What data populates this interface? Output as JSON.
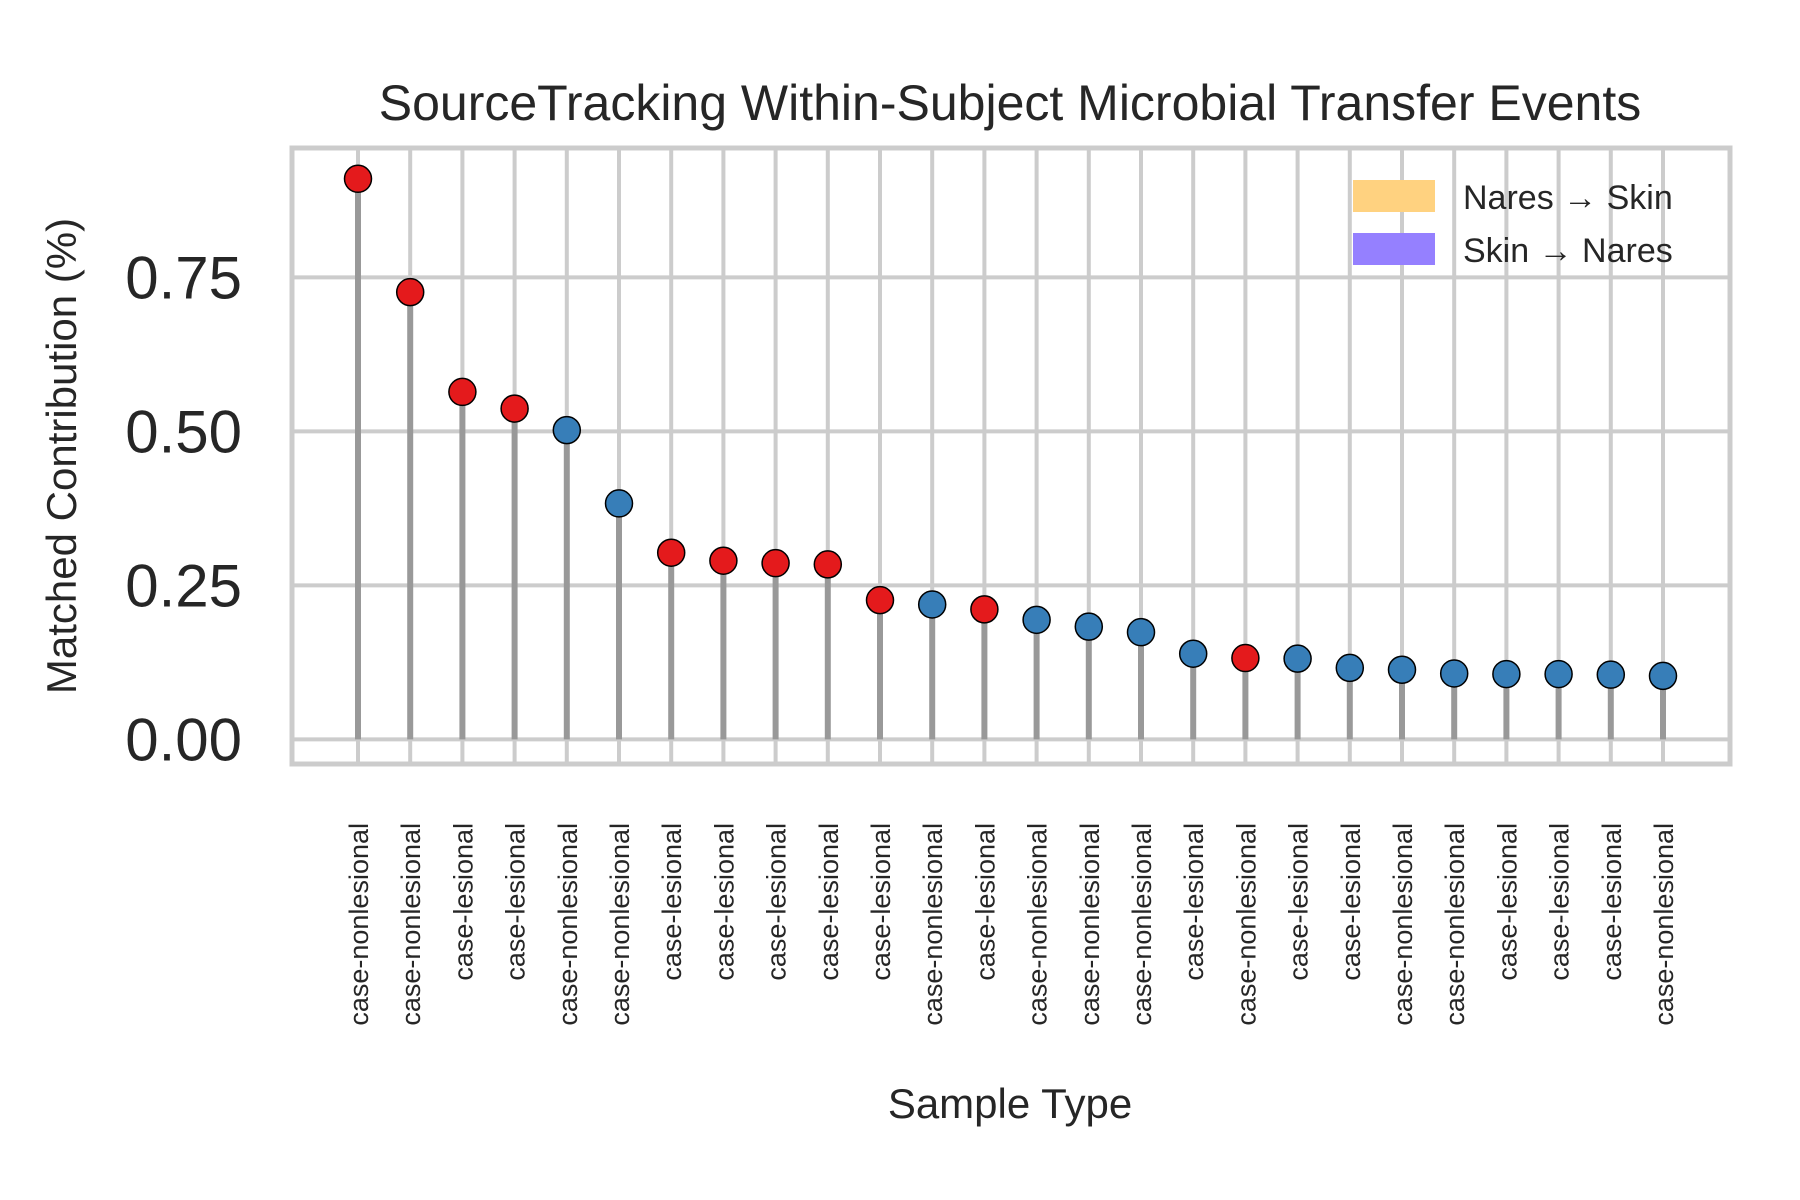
{
  "chart_data": {
    "type": "lollipop",
    "title": "SourceTracking Within-Subject Microbial Transfer Events",
    "xlabel": "Sample Type",
    "ylabel": "Matched Contribution (%)",
    "ylim": [
      -0.04,
      0.96
    ],
    "yticks": [
      "0.00",
      "0.25",
      "0.50",
      "0.75"
    ],
    "ytick_values": [
      0,
      0.25,
      0.5,
      0.75
    ],
    "grid": true,
    "legend_position": "top-right",
    "legend": [
      {
        "label": "Nares → Skin",
        "color": "#ffd280"
      },
      {
        "label": "Skin → Nares",
        "color": "#9580ff"
      }
    ],
    "colors": {
      "red": "#e41a1c",
      "blue": "#377eb8",
      "stem": "#999999",
      "grid": "#cccccc"
    },
    "categories": [
      "case-nonlesional",
      "case-nonlesional",
      "case-lesional",
      "case-lesional",
      "case-nonlesional",
      "case-nonlesional",
      "case-lesional",
      "case-lesional",
      "case-lesional",
      "case-lesional",
      "case-lesional",
      "case-nonlesional",
      "case-lesional",
      "case-nonlesional",
      "case-nonlesional",
      "case-nonlesional",
      "case-lesional",
      "case-nonlesional",
      "case-lesional",
      "case-lesional",
      "case-nonlesional",
      "case-nonlesional",
      "case-lesional",
      "case-lesional",
      "case-lesional",
      "case-nonlesional"
    ],
    "values": [
      0.91,
      0.726,
      0.564,
      0.537,
      0.502,
      0.383,
      0.303,
      0.29,
      0.286,
      0.284,
      0.226,
      0.219,
      0.211,
      0.194,
      0.183,
      0.174,
      0.139,
      0.132,
      0.131,
      0.116,
      0.113,
      0.107,
      0.106,
      0.106,
      0.105,
      0.103
    ],
    "marker_colors": [
      "red",
      "red",
      "red",
      "red",
      "blue",
      "blue",
      "red",
      "red",
      "red",
      "red",
      "red",
      "blue",
      "red",
      "blue",
      "blue",
      "blue",
      "blue",
      "red",
      "blue",
      "blue",
      "blue",
      "blue",
      "blue",
      "blue",
      "blue",
      "blue"
    ]
  }
}
